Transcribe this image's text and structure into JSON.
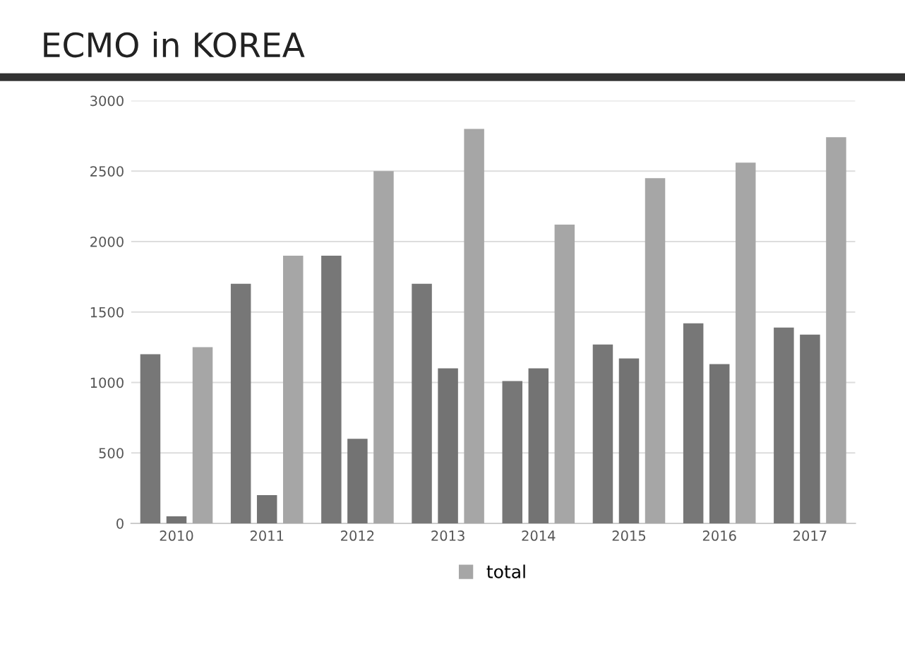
{
  "chart_data": {
    "type": "bar",
    "title": "ECMO in KOREA",
    "categories": [
      "2010",
      "2011",
      "2012",
      "2013",
      "2014",
      "2015",
      "2016",
      "2017"
    ],
    "series": [
      {
        "color": "#777777",
        "values": [
          1200,
          1700,
          1900,
          1700,
          1010,
          1270,
          1420,
          1390
        ]
      },
      {
        "color": "#737373",
        "values": [
          50,
          200,
          600,
          1100,
          1100,
          1170,
          1130,
          1340
        ]
      },
      {
        "name": "total",
        "color": "#a6a6a6",
        "values": [
          1250,
          1900,
          2500,
          2800,
          2120,
          2450,
          2560,
          2740
        ]
      }
    ],
    "ylim": [
      0,
      3000
    ],
    "yticks": [
      0,
      500,
      1000,
      1500,
      2000,
      2500,
      3000
    ],
    "grid": "y",
    "legend": "bottom"
  }
}
